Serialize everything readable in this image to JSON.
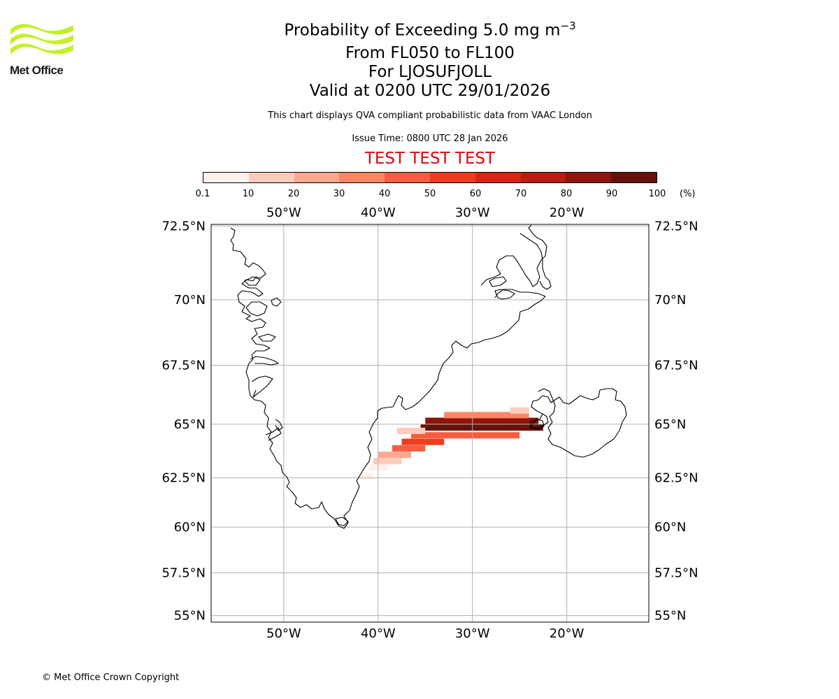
{
  "logo": {
    "text": "Met Office",
    "color": "#c4f02a"
  },
  "header": {
    "title": "Probability of Exceeding 5.0 mg m",
    "title_exp": "−3",
    "level_range": "From FL050 to FL100",
    "location": "For LJOSUFJOLL",
    "valid_time": "Valid at 0200 UTC 29/01/2026",
    "description": "This chart displays QVA compliant probabilistic data from VAAC London",
    "issue_time": "Issue Time: 0800 UTC 28 Jan 2026",
    "test_banner": "TEST TEST TEST"
  },
  "colorbar": {
    "ticks": [
      "0.1",
      "10",
      "20",
      "30",
      "40",
      "50",
      "60",
      "70",
      "80",
      "90",
      "100"
    ],
    "unit": "(%)",
    "colors": [
      "#fff0eb",
      "#fdcbbb",
      "#fca88f",
      "#fc8566",
      "#f85d41",
      "#ec3c22",
      "#d52617",
      "#b71c10",
      "#8f150a",
      "#651309"
    ]
  },
  "map": {
    "lon_ticks_top": [
      "50°W",
      "40°W",
      "30°W",
      "20°W"
    ],
    "lon_ticks_bottom": [
      "50°W",
      "40°W",
      "30°W",
      "20°W"
    ],
    "lat_ticks": [
      "72.5°N",
      "70°N",
      "67.5°N",
      "65°N",
      "62.5°N",
      "60°N",
      "57.5°N",
      "55°N"
    ],
    "grid_lons": [
      -50,
      -40,
      -30,
      -20
    ],
    "grid_lats": [
      72.5,
      70,
      67.5,
      65,
      62.5,
      60,
      57.5,
      55
    ],
    "extent": {
      "lon_min": -57.7,
      "lon_max": -11.3,
      "lat_min": 54.6,
      "lat_max": 72.55
    },
    "plume": [
      {
        "lon_start": -42,
        "lon_end": -40.5,
        "lat": 62.6,
        "prob": 5
      },
      {
        "lon_start": -41,
        "lon_end": -39,
        "lat": 63.0,
        "prob": 8
      },
      {
        "lon_start": -40.5,
        "lon_end": -37.5,
        "lat": 63.3,
        "prob": 15
      },
      {
        "lon_start": -40,
        "lon_end": -36.5,
        "lat": 63.6,
        "prob": 25
      },
      {
        "lon_start": -38.5,
        "lon_end": -35,
        "lat": 63.9,
        "prob": 45
      },
      {
        "lon_start": -37.5,
        "lon_end": -33,
        "lat": 64.2,
        "prob": 50
      },
      {
        "lon_start": -36.5,
        "lon_end": -25,
        "lat": 64.5,
        "prob": 40
      },
      {
        "lon_start": -35.5,
        "lon_end": -22.5,
        "lat": 64.85,
        "prob": 95
      },
      {
        "lon_start": -35,
        "lon_end": -23,
        "lat": 65.15,
        "prob": 85
      },
      {
        "lon_start": -33,
        "lon_end": -24,
        "lat": 65.4,
        "prob": 30
      },
      {
        "lon_start": -26,
        "lon_end": -24,
        "lat": 65.6,
        "prob": 15
      },
      {
        "lon_start": -38,
        "lon_end": -35,
        "lat": 64.7,
        "prob": 12
      }
    ]
  },
  "footer": {
    "copyright": "© Met Office Crown Copyright"
  }
}
